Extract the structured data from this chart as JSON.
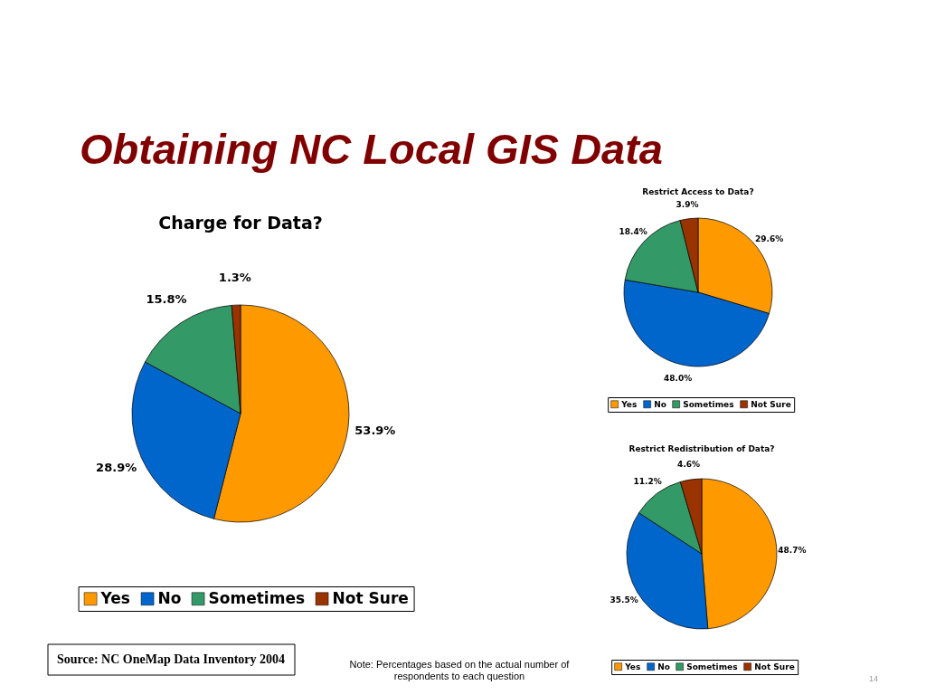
{
  "chart_data": [
    {
      "type": "other",
      "title": "Obtaining NC Local GIS Data",
      "annotations": [
        "Source: NC OneMap Data Inventory 2004",
        "Note: Percentages based on the actual number of respondents to each question",
        "14"
      ]
    },
    {
      "type": "pie",
      "title": "Charge for Data?",
      "categories": [
        "Yes",
        "No",
        "Sometimes",
        "Not Sure"
      ],
      "values": [
        53.9,
        28.9,
        15.8,
        1.3
      ],
      "colors": [
        "#ff9900",
        "#0066cc",
        "#339966",
        "#993300"
      ],
      "value_labels": [
        "53.9%",
        "28.9%",
        "15.8%",
        "1.3%"
      ],
      "legend": "bottom"
    },
    {
      "type": "pie",
      "title": "Restrict Access to Data?",
      "categories": [
        "Yes",
        "No",
        "Sometimes",
        "Not Sure"
      ],
      "values": [
        29.6,
        48.0,
        18.4,
        3.9
      ],
      "colors": [
        "#ff9900",
        "#0066cc",
        "#339966",
        "#993300"
      ],
      "value_labels": [
        "29.6%",
        "48.0%",
        "18.4%",
        "3.9%"
      ],
      "legend": "bottom"
    },
    {
      "type": "pie",
      "title": "Restrict Redistribution of Data?",
      "categories": [
        "Yes",
        "No",
        "Sometimes",
        "Not Sure"
      ],
      "values": [
        48.7,
        35.5,
        11.2,
        4.6
      ],
      "colors": [
        "#ff9900",
        "#0066cc",
        "#339966",
        "#993300"
      ],
      "value_labels": [
        "48.7%",
        "35.5%",
        "11.2%",
        "4.6%"
      ],
      "legend": "bottom"
    }
  ]
}
